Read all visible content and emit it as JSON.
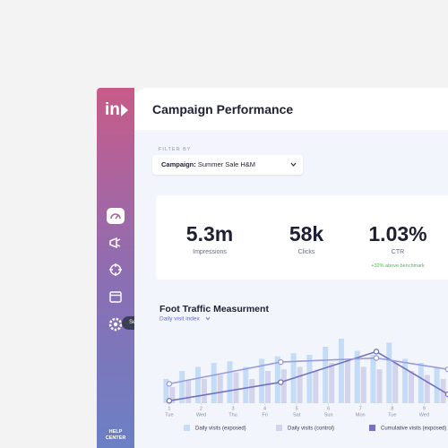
{
  "app": {
    "logo": "in",
    "title": "Campaign Performance",
    "filter_label": "FILTER BY",
    "filter_key": "Campaign:",
    "filter_value": "Summer Sale H&M",
    "tooltip": "Settings",
    "help": "HELP CENTER"
  },
  "stats": [
    {
      "value": "5.3m",
      "label": "Impressions"
    },
    {
      "value": "58k",
      "label": "Clicks"
    },
    {
      "value": "1.03%",
      "label": "CTR",
      "note": "+32% above benchmark"
    }
  ],
  "chart_data": {
    "type": "bar",
    "title": "Foot Traffic Measurment",
    "subtitle": "Daily visit index",
    "xticks": [
      1,
      2,
      3,
      4,
      5,
      6,
      7,
      8,
      9
    ],
    "xtick_days": [
      "Tue",
      "Wed",
      "Thu",
      "Fri",
      "Sat",
      "Sun",
      "Mon",
      "Tue",
      "Wed"
    ],
    "xlim": [
      0.75,
      9.75
    ],
    "ylim": [
      0,
      100
    ],
    "x": [
      1,
      1.5,
      2,
      2.5,
      3,
      3.5,
      4,
      4.5,
      5,
      5.5,
      6,
      6.5,
      7,
      7.5,
      8,
      8.5,
      9,
      9.5
    ],
    "series": [
      {
        "name": "Daily visits (exposed)",
        "color": "#c5dcf7",
        "kind": "bar",
        "values": [
          30,
          40,
          45,
          50,
          52,
          45,
          55,
          58,
          62,
          60,
          70,
          80,
          65,
          60,
          75,
          55,
          50,
          45
        ]
      },
      {
        "name": "Daily visits (control)",
        "color": "#d3d3ec",
        "kind": "bar",
        "values": [
          20,
          28,
          30,
          35,
          38,
          30,
          40,
          42,
          45,
          40,
          50,
          55,
          45,
          42,
          50,
          40,
          35,
          30
        ]
      },
      {
        "name": "Cumulative visits (exposed)",
        "color": "#7472bd",
        "kind": "line",
        "x": [
          1,
          4.5,
          7.5,
          9.75
        ],
        "values": [
          3,
          26,
          64,
          11
        ]
      },
      {
        "color": "#9a9ddb",
        "kind": "line",
        "x": [
          1,
          4.5,
          7.5,
          9.75
        ],
        "values": [
          24,
          51,
          56,
          42
        ]
      }
    ]
  }
}
